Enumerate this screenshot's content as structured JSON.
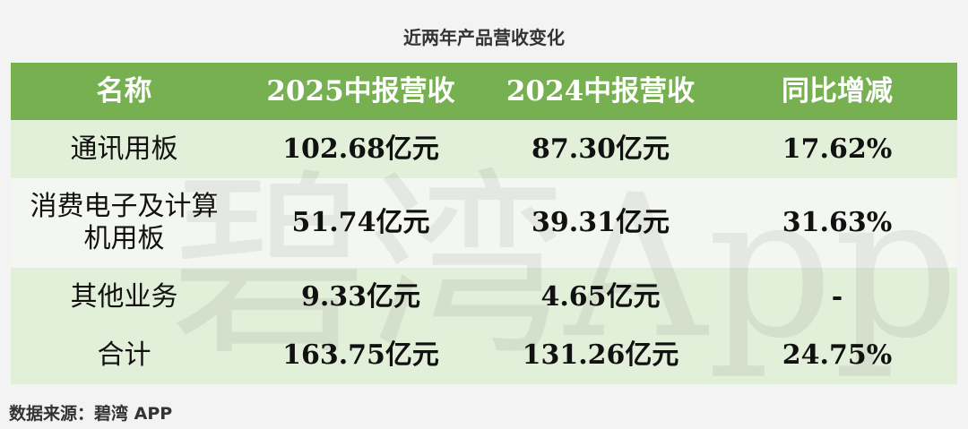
{
  "title": "近两年产品营收变化",
  "table": {
    "header": [
      "名称",
      "2025中报营收",
      "2024中报营收",
      "同比增减"
    ],
    "rows": [
      [
        "通讯用板",
        "102.68亿元",
        "87.30亿元",
        "17.62%"
      ],
      [
        "消费电子及计算机用板",
        "51.74亿元",
        "39.31亿元",
        "31.63%"
      ],
      [
        "其他业务",
        "9.33亿元",
        "4.65亿元",
        "-"
      ],
      [
        "合计",
        "163.75亿元",
        "131.26亿元",
        "24.75%"
      ]
    ]
  },
  "watermark": "碧湾App",
  "source": "数据来源：碧湾 APP"
}
